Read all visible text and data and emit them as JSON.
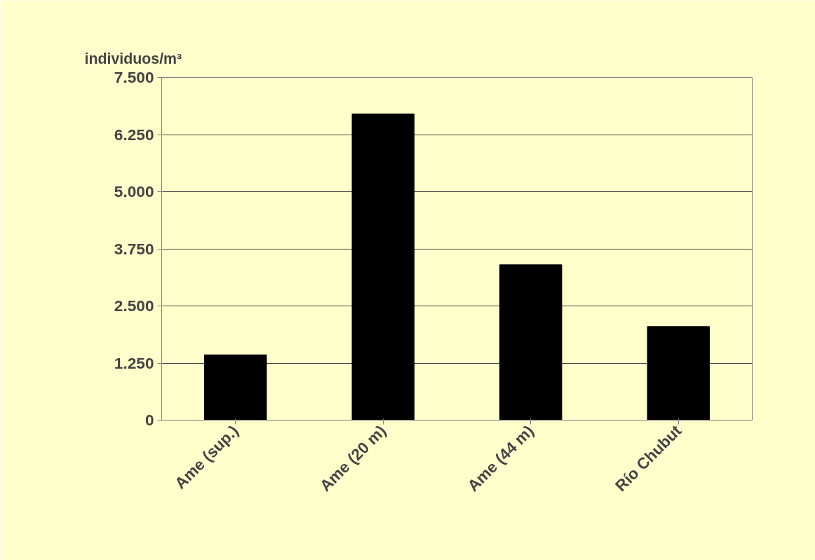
{
  "chart_data": {
    "type": "bar",
    "ylabel": "individuos/m³",
    "categories": [
      "Ame (sup.)",
      "Ame (20 m)",
      "Ame (44 m)",
      "Río Chubut"
    ],
    "values": [
      1430,
      6700,
      3400,
      2050
    ],
    "color": "#000000",
    "ylim": [
      0,
      7500
    ],
    "yticks": [
      {
        "value": 0,
        "label": "0"
      },
      {
        "value": 1250,
        "label": "1.250"
      },
      {
        "value": 2500,
        "label": "2.500"
      },
      {
        "value": 3750,
        "label": "3.750"
      },
      {
        "value": 5000,
        "label": "5.000"
      },
      {
        "value": 6250,
        "label": "6.250"
      },
      {
        "value": 7500,
        "label": "7.500"
      }
    ],
    "grid": "y"
  }
}
